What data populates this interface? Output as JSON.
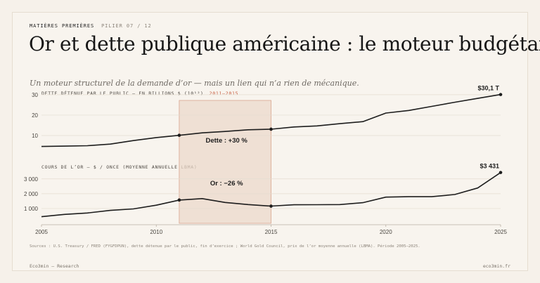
{
  "header": {
    "kicker": "MATIÈRES PREMIÈRES",
    "pillar": "PILIER 07 / 12",
    "title": "Or et dette publique américaine : le moteur budgétaire",
    "subtitle": "Un moteur structurel de la demande d’or — mais un lien qui n’a rien de mécanique."
  },
  "sources": "Sources : U.S. Treasury / FRED (FYGFDPUN), dette détenue par le public, fin d’exercice ; World Gold Council, prix de l’or moyenne annuelle (LBMA). Période 2005–2025.",
  "footer": {
    "left": "Eco3min — Research",
    "right": "eco3min.fr"
  },
  "colors": {
    "background": "#f8f4ee",
    "line": "#1d1d1d",
    "highlight_fill": "#ecd9cb",
    "highlight_border": "#d9a58e",
    "period_accent": "#c65a3c"
  },
  "chart_data": [
    {
      "type": "line",
      "axis_title": "DETTE DÉTENUE PAR LE PUBLIC — EN BILLIONS $ (10¹²)",
      "period_label": "2011–2015",
      "highlight_range": [
        2011,
        2015
      ],
      "x": [
        2005,
        2006,
        2007,
        2008,
        2009,
        2010,
        2011,
        2012,
        2013,
        2014,
        2015,
        2016,
        2017,
        2018,
        2019,
        2020,
        2021,
        2022,
        2023,
        2024,
        2025
      ],
      "series": [
        {
          "values": [
            4.6,
            4.8,
            5.0,
            5.8,
            7.5,
            9.0,
            10.1,
            11.3,
            12.0,
            12.8,
            13.1,
            14.2,
            14.7,
            15.8,
            16.8,
            21.0,
            22.3,
            24.3,
            26.3,
            28.2,
            30.1
          ]
        }
      ],
      "ylim": [
        0,
        31
      ],
      "yticks": [
        10,
        20,
        30
      ],
      "ytick_labels": [
        "10",
        "20",
        "30"
      ],
      "end_label": "$30,1 T",
      "annotation": "Dette : +30 %",
      "grid": true
    },
    {
      "type": "line",
      "axis_title": "COURS DE L’OR — $ / ONCE (MOYENNE ANNUELLE LBMA)",
      "x": [
        2005,
        2006,
        2007,
        2008,
        2009,
        2010,
        2011,
        2012,
        2013,
        2014,
        2015,
        2016,
        2017,
        2018,
        2019,
        2020,
        2021,
        2022,
        2023,
        2024,
        2025
      ],
      "series": [
        {
          "values": [
            445,
            604,
            697,
            872,
            972,
            1225,
            1572,
            1669,
            1411,
            1266,
            1160,
            1251,
            1257,
            1268,
            1393,
            1770,
            1799,
            1800,
            1943,
            2386,
            3431
          ]
        }
      ],
      "ylim": [
        0,
        3700
      ],
      "yticks": [
        1000,
        2000,
        3000
      ],
      "ytick_labels": [
        "1 000",
        "2 000",
        "3 000"
      ],
      "end_label": "$3 431",
      "annotation": "Or : −26 %",
      "xticks": [
        2005,
        2010,
        2015,
        2020,
        2025
      ],
      "grid": true
    }
  ]
}
